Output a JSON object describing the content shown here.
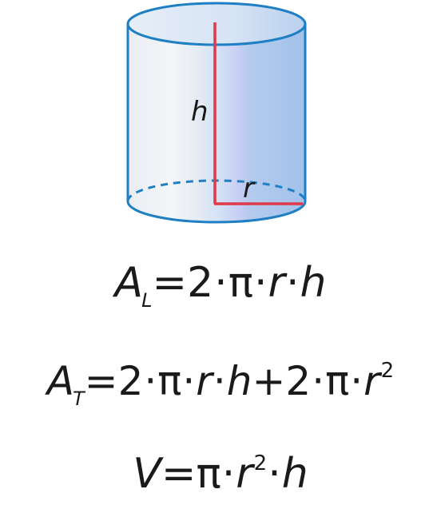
{
  "labels": {
    "height": "h",
    "radius": "r"
  },
  "formulas": {
    "lateral": {
      "symbol": "A",
      "subscript": "L",
      "equals": "=",
      "rhs_parts": [
        "2",
        "·",
        "π",
        "·",
        "r",
        "·",
        "h"
      ]
    },
    "total": {
      "symbol": "A",
      "subscript": "T",
      "equals": "=",
      "rhs_a": [
        "2",
        "·",
        "π",
        "·",
        "r",
        "·",
        "h"
      ],
      "plus": "+",
      "rhs_b": [
        "2",
        "·",
        "π",
        "·"
      ],
      "r": "r",
      "exp": "2"
    },
    "volume": {
      "symbol": "V",
      "equals": "=",
      "pi": "π",
      "dot1": "·",
      "r": "r",
      "exp": "2",
      "dot2": "·",
      "h": "h"
    }
  },
  "colors": {
    "outline": "#1f7fc4",
    "height_line": "#e03a4a",
    "body_light": "#eef1f5",
    "body_blue": "#a9c8ec"
  }
}
